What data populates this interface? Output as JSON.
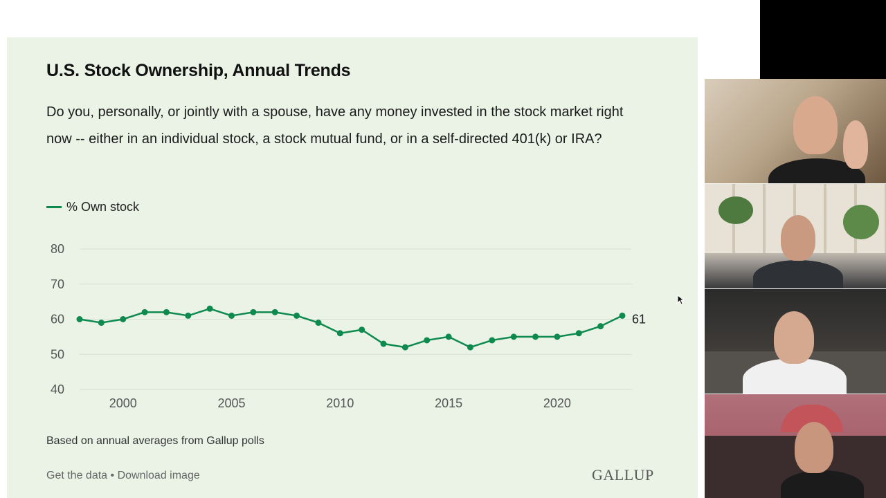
{
  "slide": {
    "title": "U.S. Stock Ownership, Annual Trends",
    "question": "Do you, personally, or jointly with a spouse, have any money invested in the stock market right now -- either in an individual stock, a stock mutual fund, or in a self-directed 401(k) or IRA?",
    "legend_label": "% Own stock",
    "footnote": "Based on annual averages from Gallup polls",
    "get_data_link": "Get the data",
    "separator": " • ",
    "download_link": "Download image",
    "brand": "GALLUP"
  },
  "colors": {
    "line": "#0e8a4e",
    "card_background": "#eaf3e6"
  },
  "chart_data": {
    "type": "line",
    "x": [
      1998,
      1999,
      2000,
      2001,
      2002,
      2003,
      2004,
      2005,
      2006,
      2007,
      2008,
      2009,
      2010,
      2011,
      2012,
      2013,
      2014,
      2015,
      2016,
      2017,
      2018,
      2019,
      2020,
      2021,
      2022,
      2023
    ],
    "series": [
      {
        "name": "% Own stock",
        "values": [
          60,
          59,
          60,
          62,
          62,
          61,
          63,
          61,
          62,
          62,
          61,
          59,
          56,
          57,
          53,
          52,
          54,
          55,
          52,
          54,
          55,
          55,
          55,
          56,
          58,
          61
        ]
      }
    ],
    "x_ticks": [
      2000,
      2005,
      2010,
      2015,
      2020
    ],
    "y_ticks": [
      40,
      50,
      60,
      70,
      80
    ],
    "ylim": [
      40,
      80
    ],
    "end_label": "61",
    "grid": "horizontal",
    "legend_position": "top-left"
  },
  "video_tiles": [
    {
      "name": "participant-1",
      "icon": "person-video-icon"
    },
    {
      "name": "participant-2",
      "icon": "person-video-icon"
    },
    {
      "name": "participant-3",
      "icon": "person-video-icon"
    },
    {
      "name": "participant-4",
      "icon": "person-video-icon"
    }
  ]
}
